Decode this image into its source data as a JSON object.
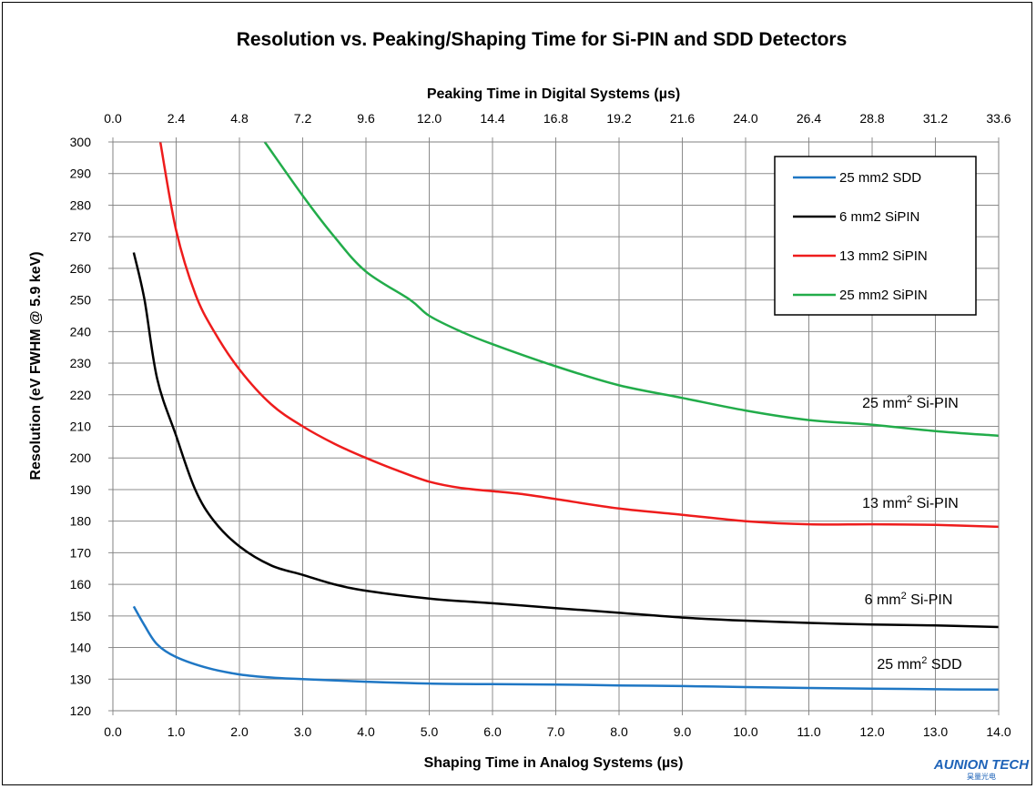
{
  "chart_data": {
    "type": "line",
    "title": "Resolution vs. Peaking/Shaping Time for Si-PIN and SDD Detectors",
    "xlabel": "Shaping Time in Analog Systems (µs)",
    "x2label": "Peaking Time in Digital Systems (µs)",
    "ylabel": "Resolution (eV FWHM @ 5.9 keV)",
    "xlim": [
      0,
      14
    ],
    "ylim": [
      120,
      300
    ],
    "x_ticks": [
      "0.0",
      "1.0",
      "2.0",
      "3.0",
      "4.0",
      "5.0",
      "6.0",
      "7.0",
      "8.0",
      "9.0",
      "10.0",
      "11.0",
      "12.0",
      "13.0",
      "14.0"
    ],
    "x2_ticks": [
      "0.0",
      "2.4",
      "4.8",
      "7.2",
      "9.6",
      "12.0",
      "14.4",
      "16.8",
      "19.2",
      "21.6",
      "24.0",
      "26.4",
      "28.8",
      "31.2",
      "33.6"
    ],
    "y_ticks": [
      "120",
      "130",
      "140",
      "150",
      "160",
      "170",
      "180",
      "190",
      "200",
      "210",
      "220",
      "230",
      "240",
      "250",
      "260",
      "270",
      "280",
      "290",
      "300"
    ],
    "grid": true,
    "legend_position": "top-right",
    "series": [
      {
        "name": "25 mm2 SDD",
        "color": "#1f77c4",
        "points": [
          [
            0.33,
            153
          ],
          [
            0.5,
            147
          ],
          [
            0.7,
            141
          ],
          [
            1.0,
            137
          ],
          [
            1.5,
            133.5
          ],
          [
            2.0,
            131.5
          ],
          [
            2.5,
            130.5
          ],
          [
            3.0,
            130
          ],
          [
            4.0,
            129.2
          ],
          [
            5.0,
            128.6
          ],
          [
            6.0,
            128.4
          ],
          [
            7.0,
            128.3
          ],
          [
            8.0,
            128
          ],
          [
            9.0,
            127.8
          ],
          [
            10.0,
            127.5
          ],
          [
            11.0,
            127.2
          ],
          [
            12.0,
            127
          ],
          [
            13.0,
            126.8
          ],
          [
            14.0,
            126.7
          ]
        ]
      },
      {
        "name": "6 mm2 SiPIN",
        "color": "#000000",
        "points": [
          [
            0.33,
            265
          ],
          [
            0.5,
            250
          ],
          [
            0.7,
            225
          ],
          [
            1.0,
            207
          ],
          [
            1.3,
            190
          ],
          [
            1.6,
            180
          ],
          [
            2.0,
            172
          ],
          [
            2.5,
            166
          ],
          [
            3.0,
            163
          ],
          [
            3.5,
            160
          ],
          [
            4.0,
            158
          ],
          [
            5.0,
            155.5
          ],
          [
            6.0,
            154
          ],
          [
            7.0,
            152.5
          ],
          [
            8.0,
            151
          ],
          [
            9.0,
            149.5
          ],
          [
            10.0,
            148.5
          ],
          [
            11.0,
            147.8
          ],
          [
            12.0,
            147.3
          ],
          [
            13.0,
            147
          ],
          [
            14.0,
            146.5
          ]
        ]
      },
      {
        "name": "13 mm2 SiPIN",
        "color": "#ee1c1c",
        "points": [
          [
            0.75,
            300
          ],
          [
            1.0,
            272
          ],
          [
            1.3,
            252
          ],
          [
            1.6,
            240
          ],
          [
            2.0,
            228
          ],
          [
            2.5,
            217
          ],
          [
            3.0,
            210
          ],
          [
            3.5,
            204.5
          ],
          [
            4.0,
            200
          ],
          [
            4.5,
            196
          ],
          [
            5.0,
            192.5
          ],
          [
            5.5,
            190.5
          ],
          [
            6.0,
            189.5
          ],
          [
            6.5,
            188.5
          ],
          [
            7.0,
            187
          ],
          [
            8.0,
            184
          ],
          [
            9.0,
            182
          ],
          [
            10.0,
            180
          ],
          [
            11.0,
            179
          ],
          [
            12.0,
            179
          ],
          [
            13.0,
            178.8
          ],
          [
            14.0,
            178.2
          ]
        ]
      },
      {
        "name": "25 mm2 SiPIN",
        "color": "#22ac4a",
        "points": [
          [
            2.4,
            300
          ],
          [
            3.0,
            283
          ],
          [
            3.5,
            270
          ],
          [
            4.0,
            259
          ],
          [
            4.7,
            250
          ],
          [
            5.0,
            245
          ],
          [
            5.5,
            240
          ],
          [
            6.0,
            236
          ],
          [
            7.0,
            229
          ],
          [
            8.0,
            223
          ],
          [
            9.0,
            219
          ],
          [
            10.0,
            215
          ],
          [
            11.0,
            212
          ],
          [
            12.0,
            210.5
          ],
          [
            13.0,
            208.5
          ],
          [
            14.0,
            207
          ]
        ]
      }
    ],
    "annotations": [
      {
        "label": "25 mm",
        "sup": "2",
        "rest": " Si-PIN"
      },
      {
        "label": "13 mm",
        "sup": "2",
        "rest": " Si-PIN"
      },
      {
        "label": "6 mm",
        "sup": "2",
        "rest": " Si-PIN"
      },
      {
        "label": "25 mm",
        "sup": "2",
        "rest": " SDD"
      }
    ]
  },
  "logo": {
    "main": "AUNION TECH",
    "sub": "昊量光电"
  }
}
